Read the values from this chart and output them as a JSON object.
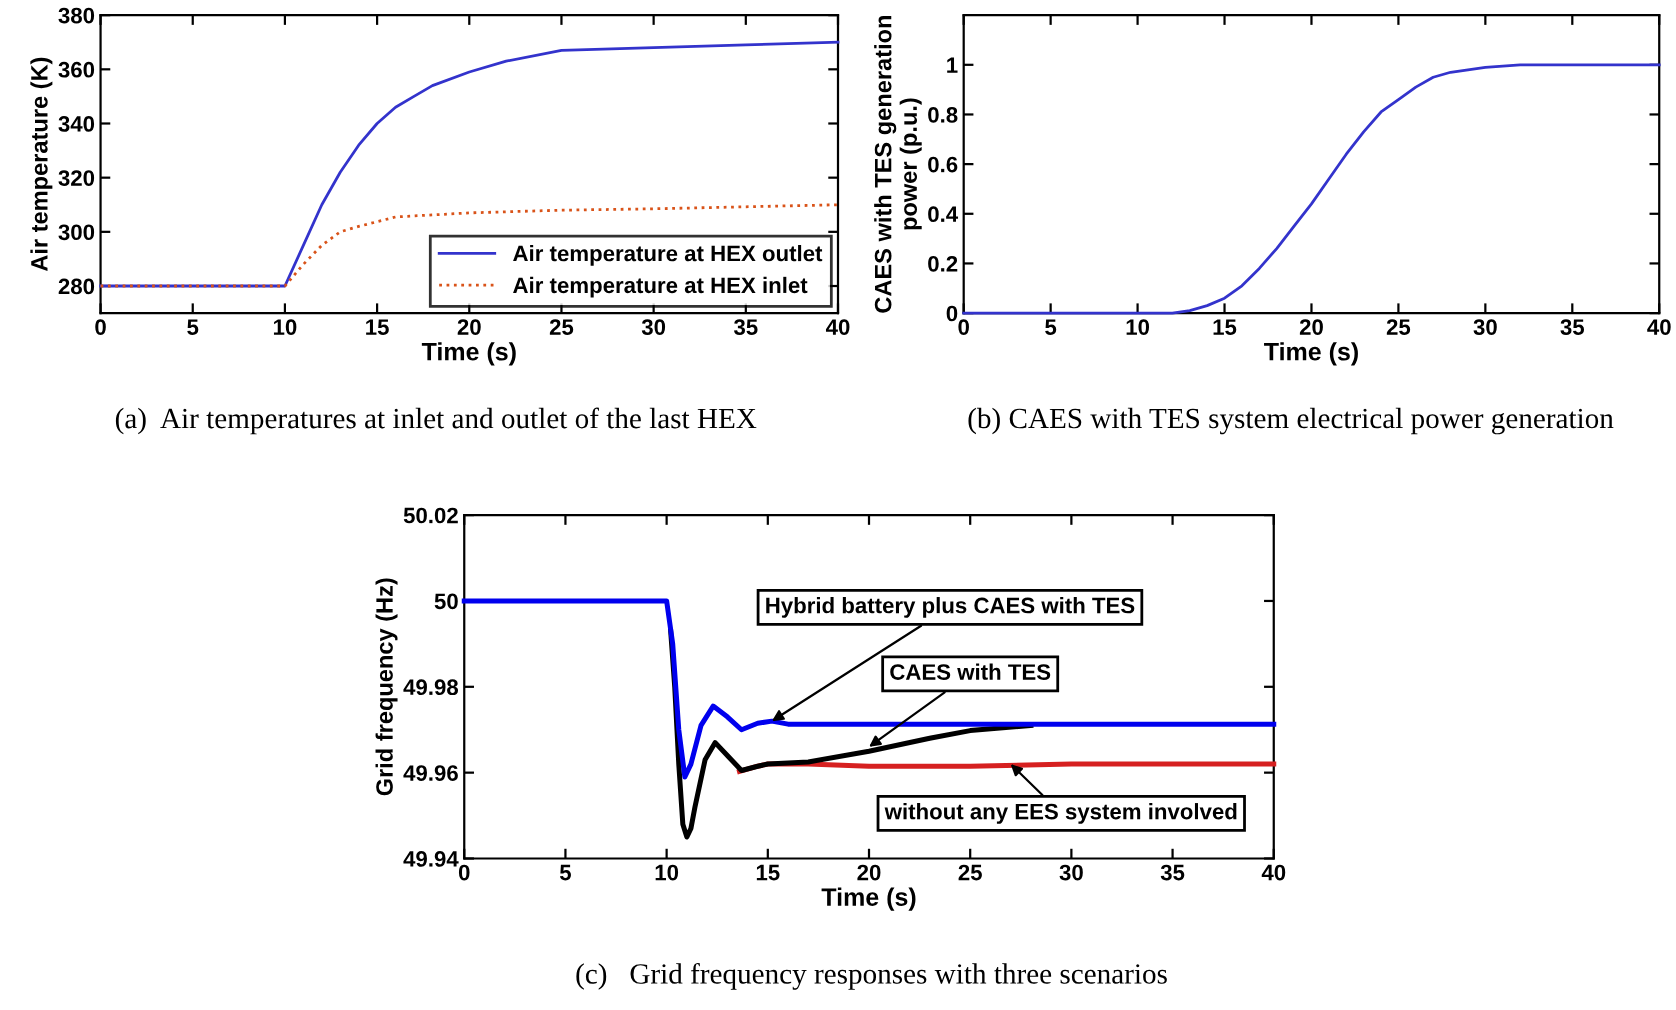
{
  "chart_data": [
    {
      "type": "line",
      "xlabel": "Time (s)",
      "ylabel": "Air temperature (K)",
      "xlim": [
        0,
        40
      ],
      "ylim": [
        270,
        380
      ],
      "xticks": [
        0,
        5,
        10,
        15,
        20,
        25,
        30,
        35,
        40
      ],
      "yticks": [
        280,
        300,
        320,
        340,
        360,
        380
      ],
      "grid": false,
      "legend": "bottom right",
      "marker": "none",
      "annotations": [
        "(a)  Air temperatures at inlet and outlet of the last HEX"
      ],
      "series": [
        {
          "name": "Air temperature at HEX outlet",
          "color": "#3333cc",
          "line_style": "solid",
          "x": [
            0,
            10,
            11,
            12,
            13,
            14,
            15,
            16,
            17,
            18,
            20,
            22,
            25,
            30,
            35,
            40
          ],
          "values": [
            280,
            280,
            295,
            310,
            322,
            332,
            340,
            346,
            350,
            354,
            359,
            363,
            367,
            368,
            369,
            370
          ]
        },
        {
          "name": "Air temperature at HEX inlet",
          "color": "#d95319",
          "line_style": "dotted",
          "x": [
            0,
            10,
            11,
            12,
            13,
            14,
            16,
            20,
            25,
            30,
            40
          ],
          "values": [
            280,
            280,
            288,
            295,
            300,
            302,
            305.5,
            307,
            308,
            308.5,
            310
          ]
        }
      ]
    },
    {
      "type": "line",
      "xlabel": "Time (s)",
      "ylabel": "CAES with TES generation\npower (p.u.)",
      "xlim": [
        0,
        40
      ],
      "ylim": [
        0,
        1.2
      ],
      "xticks": [
        0,
        5,
        10,
        15,
        20,
        25,
        30,
        35,
        40
      ],
      "yticks": [
        0,
        0.2,
        0.4,
        0.6,
        0.8,
        1
      ],
      "grid": false,
      "marker": "none",
      "annotations": [
        "(b) CAES with TES system electrical power generation"
      ],
      "series": [
        {
          "color": "#3333cc",
          "line_style": "solid",
          "x": [
            0,
            12,
            13,
            14,
            15,
            16,
            17,
            18,
            19,
            20,
            21,
            22,
            23,
            24,
            25,
            26,
            27,
            28,
            29,
            30,
            32,
            40
          ],
          "values": [
            0,
            0,
            0.01,
            0.03,
            0.06,
            0.11,
            0.18,
            0.26,
            0.35,
            0.44,
            0.54,
            0.64,
            0.73,
            0.81,
            0.86,
            0.91,
            0.95,
            0.97,
            0.98,
            0.99,
            1,
            1
          ]
        }
      ]
    },
    {
      "type": "line",
      "xlabel": "Time (s)",
      "ylabel": "Grid frequency (Hz)",
      "xlim": [
        0,
        40
      ],
      "ylim": [
        49.94,
        50.02
      ],
      "xticks": [
        0,
        5,
        10,
        15,
        20,
        25,
        30,
        35,
        40
      ],
      "yticks": [
        49.94,
        49.96,
        49.98,
        50,
        50.02
      ],
      "grid": false,
      "marker": "none",
      "annotations": [
        {
          "text": "Hybrid battery plus CAES with TES",
          "x": 15.2,
          "y": 49.972
        },
        {
          "text": "CAES with TES",
          "x": 20,
          "y": 49.966
        },
        {
          "text": "without any EES system involved",
          "x": 27,
          "y": 49.962
        },
        "(c)   Grid frequency responses with three scenarios"
      ],
      "series": [
        {
          "color": "#d62020",
          "line_style": "solid",
          "x": [
            13.6,
            14.5,
            15,
            17,
            20,
            25,
            30,
            40
          ],
          "values": [
            49.9603,
            49.9615,
            49.962,
            49.962,
            49.9615,
            49.9615,
            49.962,
            49.962
          ]
        },
        {
          "color": "#000000",
          "line_style": "solid",
          "x": [
            10.2,
            10.4,
            10.6,
            10.8,
            11,
            11.2,
            11.4,
            11.9,
            12.4,
            13,
            13.7,
            14.5,
            15,
            17,
            20,
            23,
            25,
            28
          ],
          "values": [
            49.993,
            49.98,
            49.962,
            49.948,
            49.945,
            49.947,
            49.952,
            49.963,
            49.967,
            49.964,
            49.9605,
            49.9615,
            49.962,
            49.9625,
            49.965,
            49.968,
            49.9698,
            49.971
          ]
        },
        {
          "color": "#0000ee",
          "line_style": "solid",
          "x": [
            0,
            10,
            10.3,
            10.6,
            10.9,
            11.2,
            11.7,
            12.3,
            13,
            13.7,
            14.5,
            15.2,
            16,
            40
          ],
          "values": [
            50,
            50,
            49.99,
            49.97,
            49.959,
            49.962,
            49.971,
            49.9755,
            49.973,
            49.97,
            49.9715,
            49.972,
            49.9713,
            49.9713
          ]
        }
      ]
    }
  ]
}
